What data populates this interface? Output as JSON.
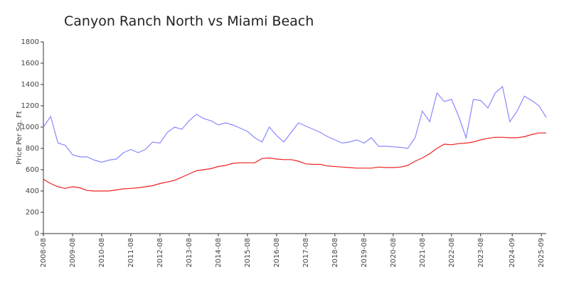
{
  "chart_data": {
    "type": "line",
    "title": "Canyon Ranch North vs Miami Beach",
    "y_label": "Price Per Sq. Ft",
    "x": [
      "2008-08",
      "2008-11",
      "2009-02",
      "2009-05",
      "2009-08",
      "2009-11",
      "2010-02",
      "2010-05",
      "2010-08",
      "2010-11",
      "2011-02",
      "2011-05",
      "2011-08",
      "2011-11",
      "2012-02",
      "2012-05",
      "2012-08",
      "2012-11",
      "2013-02",
      "2013-05",
      "2013-08",
      "2013-11",
      "2014-02",
      "2014-05",
      "2014-08",
      "2014-11",
      "2015-02",
      "2015-05",
      "2015-08",
      "2015-11",
      "2016-02",
      "2016-05",
      "2016-08",
      "2016-11",
      "2017-02",
      "2017-05",
      "2017-08",
      "2017-11",
      "2018-02",
      "2018-05",
      "2018-08",
      "2018-11",
      "2019-02",
      "2019-05",
      "2019-08",
      "2019-11",
      "2020-02",
      "2020-05",
      "2020-08",
      "2020-11",
      "2021-02",
      "2021-05",
      "2021-08",
      "2021-11",
      "2022-02",
      "2022-05",
      "2022-08",
      "2022-11",
      "2023-02",
      "2023-05",
      "2023-08",
      "2023-11",
      "2024-02",
      "2024-05",
      "2024-08",
      "2024-11",
      "2025-02",
      "2025-05",
      "2025-08",
      "2025-11"
    ],
    "series": [
      {
        "color": "#8888ff",
        "values": [
          1000,
          1100,
          850,
          830,
          740,
          720,
          720,
          690,
          670,
          690,
          700,
          760,
          790,
          760,
          790,
          860,
          850,
          950,
          1000,
          980,
          1060,
          1120,
          1080,
          1060,
          1020,
          1040,
          1020,
          990,
          960,
          900,
          860,
          1000,
          920,
          860,
          950,
          1040,
          1010,
          980,
          950,
          910,
          880,
          850,
          860,
          880,
          850,
          900,
          820,
          820,
          815,
          810,
          800,
          900,
          1150,
          1050,
          1320,
          1240,
          1260,
          1100,
          900,
          1260,
          1250,
          1180,
          1320,
          1380,
          1050,
          1150,
          1290,
          1250,
          1200,
          1090
        ]
      },
      {
        "color": "#ee2222",
        "values": [
          510,
          470,
          440,
          425,
          440,
          430,
          405,
          400,
          400,
          400,
          410,
          420,
          425,
          430,
          440,
          450,
          470,
          485,
          500,
          530,
          560,
          590,
          600,
          610,
          630,
          640,
          660,
          665,
          665,
          665,
          705,
          710,
          700,
          695,
          695,
          680,
          655,
          650,
          650,
          635,
          630,
          625,
          620,
          615,
          615,
          615,
          625,
          620,
          620,
          625,
          640,
          680,
          710,
          750,
          800,
          840,
          835,
          845,
          850,
          860,
          880,
          895,
          905,
          905,
          900,
          900,
          910,
          930,
          945,
          945
        ]
      }
    ],
    "xlim": [
      "2008-08",
      "2025-11"
    ],
    "xticks": [
      "2008-08",
      "2009-08",
      "2010-08",
      "2011-08",
      "2012-08",
      "2013-08",
      "2014-08",
      "2015-08",
      "2016-08",
      "2017-08",
      "2018-08",
      "2019-08",
      "2020-08",
      "2021-08",
      "2022-08",
      "2023-08",
      "2024-09",
      "2025-09"
    ],
    "ylim": [
      0,
      1800
    ],
    "yticks": [
      0,
      200,
      400,
      600,
      800,
      1000,
      1200,
      1400,
      1600,
      1800
    ],
    "grid": false
  }
}
